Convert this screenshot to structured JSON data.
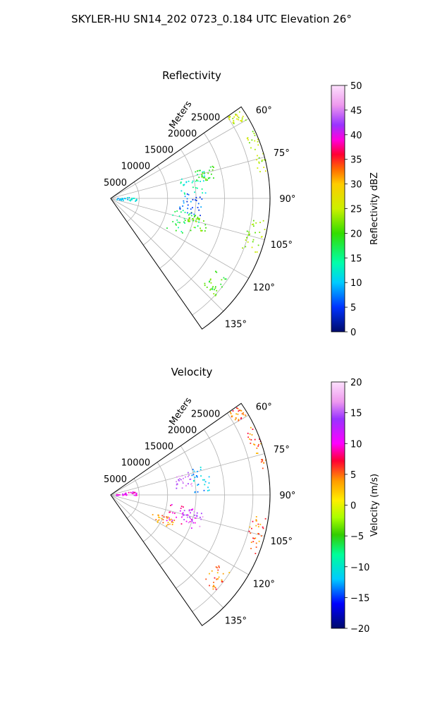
{
  "suptitle": "SKYLER-HU  SN14_202  0723_0.184 UTC Elevation 26°",
  "chart_data": [
    {
      "type": "polar-sector",
      "title": "Reflectivity",
      "radial_label": "Meters",
      "theta_range_deg": [
        55,
        145
      ],
      "r_max": 28000,
      "r_ticks": [
        5000,
        10000,
        15000,
        20000,
        25000
      ],
      "r_tick_labels": [
        "5000",
        "10000",
        "15000",
        "20000",
        "25000"
      ],
      "theta_ticks": [
        60,
        75,
        90,
        105,
        120,
        135
      ],
      "theta_tick_labels": [
        "60°",
        "75°",
        "90°",
        "105°",
        "120°",
        "135°"
      ],
      "grid": true,
      "colorbar": {
        "label": "Reflectivity dBZ",
        "vmin": 0,
        "vmax": 50,
        "ticks": [
          0,
          5,
          10,
          15,
          20,
          25,
          30,
          35,
          40,
          45,
          50
        ],
        "tick_labels": [
          "0",
          "5",
          "10",
          "15",
          "20",
          "25",
          "30",
          "35",
          "40",
          "45",
          "50"
        ],
        "colors": [
          "#000b6b",
          "#0033ff",
          "#00ccff",
          "#00ffaa",
          "#33dd00",
          "#ccf000",
          "#ffcc00",
          "#ff6a00",
          "#ff0033",
          "#ff00dd",
          "#9933ff",
          "#ee99ee",
          "#fde0fd"
        ],
        "stops": [
          0,
          0.1,
          0.2,
          0.28,
          0.4,
          0.5,
          0.6,
          0.66,
          0.72,
          0.78,
          0.84,
          0.92,
          1
        ]
      },
      "echo_regions": [
        {
          "theta": [
            73,
            88
          ],
          "r": [
            12000,
            17000
          ],
          "value": 13
        },
        {
          "theta": [
            72,
            79
          ],
          "r": [
            15000,
            19000
          ],
          "value": 20
        },
        {
          "theta": [
            98,
            118
          ],
          "r": [
            11000,
            16000
          ],
          "value": 17
        },
        {
          "theta": [
            101,
            110
          ],
          "r": [
            14000,
            17500
          ],
          "value": 22
        },
        {
          "theta": [
            86,
            101
          ],
          "r": [
            12000,
            16000
          ],
          "value": 6
        },
        {
          "theta": [
            85,
            98
          ],
          "r": [
            800,
            4500
          ],
          "value": 11
        },
        {
          "theta": [
            55,
            60
          ],
          "r": [
            25000,
            27500
          ],
          "value": 25
        },
        {
          "theta": [
            64,
            80
          ],
          "r": [
            26000,
            28000
          ],
          "value": 24
        },
        {
          "theta": [
            98,
            112
          ],
          "r": [
            24500,
            27500
          ],
          "value": 23
        },
        {
          "theta": [
            123,
            133
          ],
          "r": [
            22000,
            25000
          ],
          "value": 20
        }
      ]
    },
    {
      "type": "polar-sector",
      "title": "Velocity",
      "radial_label": "Meters",
      "theta_range_deg": [
        55,
        145
      ],
      "r_max": 28000,
      "r_ticks": [
        5000,
        10000,
        15000,
        20000,
        25000
      ],
      "r_tick_labels": [
        "5000",
        "10000",
        "15000",
        "20000",
        "25000"
      ],
      "theta_ticks": [
        60,
        75,
        90,
        105,
        120,
        135
      ],
      "theta_tick_labels": [
        "60°",
        "75°",
        "90°",
        "105°",
        "120°",
        "135°"
      ],
      "grid": true,
      "colorbar": {
        "label": "Velocity (m/s)",
        "vmin": -20,
        "vmax": 20,
        "ticks": [
          -20,
          -15,
          -10,
          -5,
          0,
          5,
          10,
          15,
          20
        ],
        "tick_labels": [
          "−20",
          "−15",
          "−10",
          "−5",
          "0",
          "5",
          "10",
          "15",
          "20"
        ],
        "colors": [
          "#000b6b",
          "#0000ff",
          "#00ccff",
          "#00ff99",
          "#33cc00",
          "#aaff00",
          "#ffee00",
          "#ff9900",
          "#ff0033",
          "#ff00ff",
          "#9933ff",
          "#ee99ee",
          "#fde0fd"
        ],
        "stops": [
          0,
          0.1,
          0.2,
          0.3,
          0.38,
          0.45,
          0.52,
          0.6,
          0.68,
          0.75,
          0.85,
          0.92,
          1
        ]
      },
      "echo_regions": [
        {
          "theta": [
            73,
            85
          ],
          "r": [
            11500,
            14500
          ],
          "value": 16
        },
        {
          "theta": [
            72,
            88
          ],
          "r": [
            14500,
            17500
          ],
          "value": -12
        },
        {
          "theta": [
            98,
            115
          ],
          "r": [
            10500,
            15500
          ],
          "value": 10
        },
        {
          "theta": [
            100,
            110
          ],
          "r": [
            13000,
            16500
          ],
          "value": 15
        },
        {
          "theta": [
            110,
            120
          ],
          "r": [
            8000,
            12000
          ],
          "value": 4
        },
        {
          "theta": [
            80,
            90
          ],
          "r": [
            800,
            4500
          ],
          "value": 10
        },
        {
          "theta": [
            55,
            60
          ],
          "r": [
            25000,
            27500
          ],
          "value": 5
        },
        {
          "theta": [
            64,
            80
          ],
          "r": [
            26000,
            28000
          ],
          "value": 5
        },
        {
          "theta": [
            98,
            112
          ],
          "r": [
            24500,
            27500
          ],
          "value": 5
        },
        {
          "theta": [
            123,
            133
          ],
          "r": [
            22000,
            25000
          ],
          "value": 5
        }
      ]
    }
  ]
}
